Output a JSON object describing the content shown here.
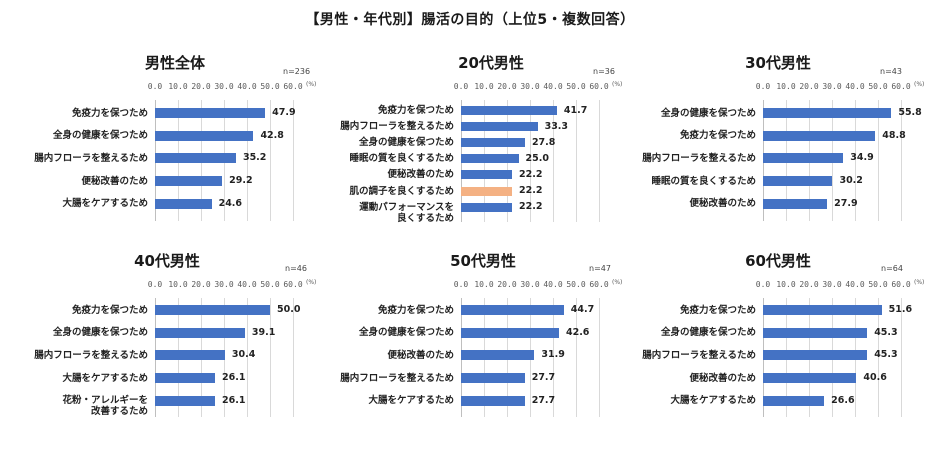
{
  "title": "【男性・年代別】腸活の目的（上位5・複数回答）",
  "colors": {
    "bar": "#4472c4",
    "highlight": "#f4b183",
    "grid": "#d9d9d9"
  },
  "axis": {
    "ticks": [
      "0.0",
      "10.0",
      "20.0",
      "30.0",
      "40.0",
      "50.0",
      "60.0"
    ],
    "unit": "(%)",
    "max": 60
  },
  "chart_data": [
    {
      "type": "bar",
      "orientation": "horizontal",
      "title": "男性全体",
      "n": "n=236",
      "xlim": [
        0,
        60
      ],
      "xlabel": "(%)",
      "grid": true,
      "categories": [
        "免疫力を保つため",
        "全身の健康を保つため",
        "腸内フローラを整えるため",
        "便秘改善のため",
        "大腸をケアするため"
      ],
      "values": [
        47.9,
        42.8,
        35.2,
        29.2,
        24.6
      ],
      "labels": [
        "47.9",
        "42.8",
        "35.2",
        "29.2",
        "24.6"
      ],
      "highlight": []
    },
    {
      "type": "bar",
      "orientation": "horizontal",
      "title": "20代男性",
      "n": "n=36",
      "xlim": [
        0,
        60
      ],
      "xlabel": "(%)",
      "grid": true,
      "categories": [
        "免疫力を保つため",
        "腸内フローラを整えるため",
        "全身の健康を保つため",
        "睡眠の質を良くするため",
        "便秘改善のため",
        "肌の調子を良くするため",
        "運動パフォーマンスを\n良くするため"
      ],
      "values": [
        41.7,
        33.3,
        27.8,
        25.0,
        22.2,
        22.2,
        22.2
      ],
      "labels": [
        "41.7",
        "33.3",
        "27.8",
        "25.0",
        "22.2",
        "22.2",
        "22.2"
      ],
      "highlight": [
        5
      ]
    },
    {
      "type": "bar",
      "orientation": "horizontal",
      "title": "30代男性",
      "n": "n=43",
      "xlim": [
        0,
        60
      ],
      "xlabel": "(%)",
      "grid": true,
      "categories": [
        "全身の健康を保つため",
        "免疫力を保つため",
        "腸内フローラを整えるため",
        "睡眠の質を良くするため",
        "便秘改善のため"
      ],
      "values": [
        55.8,
        48.8,
        34.9,
        30.2,
        27.9
      ],
      "labels": [
        "55.8",
        "48.8",
        "34.9",
        "30.2",
        "27.9"
      ],
      "highlight": []
    },
    {
      "type": "bar",
      "orientation": "horizontal",
      "title": "40代男性",
      "n": "n=46",
      "xlim": [
        0,
        60
      ],
      "xlabel": "(%)",
      "grid": true,
      "categories": [
        "免疫力を保つため",
        "全身の健康を保つため",
        "腸内フローラを整えるため",
        "大腸をケアするため",
        "花粉・アレルギーを\n改善するため"
      ],
      "values": [
        50.0,
        39.1,
        30.4,
        26.1,
        26.1
      ],
      "labels": [
        "50.0",
        "39.1",
        "30.4",
        "26.1",
        "26.1"
      ],
      "highlight": []
    },
    {
      "type": "bar",
      "orientation": "horizontal",
      "title": "50代男性",
      "n": "n=47",
      "xlim": [
        0,
        60
      ],
      "xlabel": "(%)",
      "grid": true,
      "categories": [
        "免疫力を保つため",
        "全身の健康を保つため",
        "便秘改善のため",
        "腸内フローラを整えるため",
        "大腸をケアするため"
      ],
      "values": [
        44.7,
        42.6,
        31.9,
        27.7,
        27.7
      ],
      "labels": [
        "44.7",
        "42.6",
        "31.9",
        "27.7",
        "27.7"
      ],
      "highlight": []
    },
    {
      "type": "bar",
      "orientation": "horizontal",
      "title": "60代男性",
      "n": "n=64",
      "xlim": [
        0,
        60
      ],
      "xlabel": "(%)",
      "grid": true,
      "categories": [
        "免疫力を保つため",
        "全身の健康を保つため",
        "腸内フローラを整えるため",
        "便秘改善のため",
        "大腸をケアするため"
      ],
      "values": [
        51.6,
        45.3,
        45.3,
        40.6,
        26.6
      ],
      "labels": [
        "51.6",
        "45.3",
        "45.3",
        "40.6",
        "26.6"
      ],
      "highlight": []
    }
  ]
}
